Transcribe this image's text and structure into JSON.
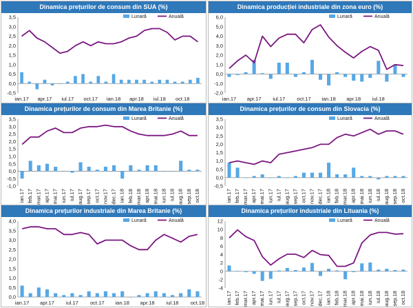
{
  "colors": {
    "title_bg": "#2f78b9",
    "bar": "#56a8e6",
    "line": "#7a1580",
    "axis": "#8a8a8a"
  },
  "legend": {
    "monthly": "Lunară",
    "annual": "Anuală"
  },
  "charts": [
    {
      "title": "Dinamica prețurilor de consum din SUA (%)",
      "chart_data": {
        "type": "bar+line",
        "title": "Dinamica prețurilor de consum din SUA (%)",
        "ylim": [
          -0.5,
          3.5
        ],
        "yticks": [
          "3,5",
          "3,0",
          "2,5",
          "2,0",
          "1,5",
          "1,0",
          "0,5",
          "0,0",
          "-0,5"
        ],
        "xtick_indices": [
          0,
          3,
          6,
          9,
          12,
          15,
          18,
          21
        ],
        "xtick_labels": [
          "ian.17",
          "apr.17",
          "iul.17",
          "oct.17",
          "ian.18",
          "apr.18",
          "iul.18",
          "oct.18"
        ],
        "xtick_rotate": false,
        "series": [
          {
            "name": "Lunară",
            "kind": "bar",
            "values": [
              0.6,
              0.1,
              -0.3,
              0.2,
              -0.1,
              0.0,
              0.1,
              0.4,
              0.5,
              0.1,
              0.4,
              0.1,
              0.5,
              0.2,
              0.2,
              0.2,
              0.2,
              0.1,
              0.2,
              0.2,
              0.1,
              0.1,
              0.2,
              0.3
            ]
          },
          {
            "name": "Anuală",
            "kind": "line",
            "values": [
              2.5,
              2.8,
              2.4,
              2.2,
              1.9,
              1.6,
              1.7,
              2.0,
              2.2,
              2.0,
              2.2,
              2.1,
              2.1,
              2.2,
              2.4,
              2.5,
              2.8,
              2.9,
              2.9,
              2.7,
              2.3,
              2.5,
              2.5,
              2.2
            ]
          }
        ]
      }
    },
    {
      "title": "Dinamica producției industriale din zona euro (%)",
      "chart_data": {
        "type": "bar+line",
        "title": "Dinamica producției industriale din zona euro (%)",
        "ylim": [
          -2.0,
          6.0
        ],
        "yticks": [
          "6,0",
          "5,0",
          "4,0",
          "3,0",
          "2,0",
          "1,0",
          "0,0",
          "-1,0",
          "-2,0"
        ],
        "xtick_indices": [
          0,
          3,
          6,
          9,
          12,
          15,
          18
        ],
        "xtick_labels": [
          "ian.17",
          "apr.17",
          "iul.17",
          "oct.17",
          "ian.18",
          "apr.18",
          "iul.18"
        ],
        "xtick_rotate": false,
        "series": [
          {
            "name": "Lunară",
            "kind": "bar",
            "values": [
              -0.3,
              -0.1,
              0.2,
              1.5,
              0.1,
              -0.5,
              1.2,
              1.2,
              -0.3,
              0.2,
              1.5,
              -0.6,
              -1.2,
              0.2,
              -0.3,
              -0.7,
              -0.8,
              -0.4,
              1.4,
              -0.8,
              1.0,
              -0.3
            ]
          },
          {
            "name": "Anuală",
            "kind": "line",
            "values": [
              0.6,
              1.4,
              2.0,
              1.2,
              4.0,
              2.9,
              3.8,
              4.2,
              4.2,
              3.3,
              4.7,
              5.2,
              3.9,
              3.0,
              2.3,
              1.7,
              2.4,
              2.9,
              2.5,
              0.5,
              1.0,
              0.9
            ]
          }
        ]
      }
    },
    {
      "title": "Dinamica prețurilor de consum din Marea Britanie (%)",
      "chart_data": {
        "type": "bar+line",
        "title": "Dinamica prețurilor de consum din Marea Britanie (%)",
        "ylim": [
          -1.0,
          3.5
        ],
        "yticks": [
          "3,5",
          "3,0",
          "2,5",
          "2,0",
          "1,5",
          "1,0",
          "0,5",
          "0,0",
          "-0,5",
          "-1,0"
        ],
        "xtick_indices": [
          0,
          1,
          2,
          3,
          4,
          5,
          6,
          7,
          8,
          9,
          10,
          11,
          12,
          13,
          14,
          15,
          16,
          17,
          18,
          19,
          20,
          21
        ],
        "xtick_labels": [
          "ian.17",
          "feb.17",
          "mar.17",
          "apr.17",
          "mai.17",
          "iun.17",
          "iul.17",
          "aug.17",
          "sep.17",
          "oct.17",
          "nov.17",
          "dec.17",
          "ian.18",
          "feb.18",
          "mar.18",
          "apr.18",
          "mai.18",
          "iun.18",
          "iul.18",
          "aug.18",
          "sep.18",
          "oct.18"
        ],
        "xtick_rotate": true,
        "series": [
          {
            "name": "Lunară",
            "kind": "bar",
            "values": [
              -0.5,
              0.7,
              0.4,
              0.5,
              0.3,
              0.0,
              -0.1,
              0.6,
              0.3,
              0.1,
              0.3,
              0.4,
              -0.5,
              0.4,
              0.1,
              0.4,
              0.4,
              0.0,
              0.0,
              0.7,
              0.1,
              0.1
            ]
          },
          {
            "name": "Anuală",
            "kind": "line",
            "values": [
              1.8,
              2.3,
              2.3,
              2.7,
              2.9,
              2.6,
              2.6,
              2.9,
              3.0,
              3.0,
              3.1,
              3.0,
              3.0,
              2.7,
              2.5,
              2.4,
              2.4,
              2.4,
              2.5,
              2.7,
              2.4,
              2.4
            ]
          }
        ]
      }
    },
    {
      "title": "Dinamica prețurilor de consum din Slovacia (%)",
      "chart_data": {
        "type": "bar+line",
        "title": "Dinamica prețurilor de consum din Slovacia (%)",
        "ylim": [
          -0.5,
          3.5
        ],
        "yticks": [
          "3,5",
          "3,0",
          "2,5",
          "2,0",
          "1,5",
          "1,0",
          "0,5",
          "0,0",
          "-0,5"
        ],
        "xtick_indices": [
          0,
          1,
          2,
          3,
          4,
          5,
          6,
          7,
          8,
          9,
          10,
          11,
          12,
          13,
          14,
          15,
          16,
          17,
          18,
          19,
          20,
          21
        ],
        "xtick_labels": [
          "ian.17",
          "feb.17",
          "mar.17",
          "apr.17",
          "mai.17",
          "iun.17",
          "iul.17",
          "aug.17",
          "sep.17",
          "oct.17",
          "nov.17",
          "dec.17",
          "ian.18",
          "feb.18",
          "mar.18",
          "apr.18",
          "mai.18",
          "iun.18",
          "iul.18",
          "aug.18",
          "sep.18",
          "oct.18"
        ],
        "xtick_rotate": true,
        "series": [
          {
            "name": "Lunară",
            "kind": "bar",
            "values": [
              0.9,
              0.6,
              0.0,
              0.1,
              0.2,
              0.0,
              0.1,
              0.0,
              0.1,
              0.3,
              0.3,
              0.3,
              0.9,
              0.2,
              0.2,
              0.6,
              0.1,
              0.1,
              -0.1,
              0.1,
              0.1,
              0.1
            ]
          },
          {
            "name": "Anuală",
            "kind": "line",
            "values": [
              0.9,
              1.0,
              0.9,
              0.8,
              1.0,
              0.9,
              1.4,
              1.5,
              1.6,
              1.7,
              1.8,
              2.0,
              2.0,
              2.4,
              2.6,
              2.5,
              2.7,
              2.9,
              2.6,
              2.8,
              2.8,
              2.6
            ]
          }
        ]
      }
    },
    {
      "title": "Dinamica prețurilor industriale din Marea Britanie (%)",
      "chart_data": {
        "type": "bar+line",
        "title": "Dinamica prețurilor industriale din Marea Britanie (%)",
        "ylim": [
          0.0,
          4.0
        ],
        "yticks": [
          "4,0",
          "3,5",
          "3,0",
          "2,5",
          "2,0",
          "1,5",
          "1,0",
          "0,5",
          "0,0"
        ],
        "xtick_indices": [
          0,
          3,
          6,
          9,
          12,
          15,
          18,
          21
        ],
        "xtick_labels": [
          "ian.17",
          "apr.17",
          "iul.17",
          "oct.17",
          "ian.18",
          "apr.18",
          "iul.18",
          "oct.18"
        ],
        "xtick_rotate": false,
        "series": [
          {
            "name": "Lunară",
            "kind": "bar",
            "values": [
              0.6,
              0.2,
              0.5,
              0.4,
              0.2,
              0.1,
              0.2,
              0.1,
              0.3,
              0.2,
              0.3,
              0.2,
              0.3,
              0.0,
              0.1,
              0.2,
              0.3,
              0.2,
              0.1,
              0.2,
              0.4,
              0.3
            ]
          },
          {
            "name": "Anuală",
            "kind": "line",
            "values": [
              3.6,
              3.7,
              3.7,
              3.6,
              3.6,
              3.3,
              3.3,
              3.4,
              3.3,
              2.8,
              3.0,
              3.0,
              3.0,
              2.7,
              2.5,
              2.5,
              3.0,
              3.3,
              3.1,
              2.9,
              3.2,
              3.3
            ]
          }
        ]
      }
    },
    {
      "title": "Dinamica prețurilor industriale din Lituania (%)",
      "chart_data": {
        "type": "bar+line",
        "title": "Dinamica prețurilor industriale din Lituania (%)",
        "ylim": [
          -4.0,
          12.0
        ],
        "yticks": [
          "12",
          "10",
          "8",
          "6",
          "4",
          "2",
          "0",
          "-2",
          "-4"
        ],
        "xtick_indices": [
          0,
          1,
          2,
          3,
          4,
          5,
          6,
          7,
          8,
          9,
          10,
          11,
          12,
          13,
          14,
          15,
          16,
          17,
          18,
          19,
          20,
          21
        ],
        "xtick_labels": [
          "ian.17",
          "feb.17",
          "mar.17",
          "apr.17",
          "mai.17",
          "iun.17",
          "iul.17",
          "aug.17",
          "sep.17",
          "oct.17",
          "nov.17",
          "dec.17",
          "ian.18",
          "feb.18",
          "mar.18",
          "apr.18",
          "mai.18",
          "iun.18",
          "iul.18",
          "aug.18",
          "sep.18",
          "oct.18"
        ],
        "xtick_rotate": true,
        "series": [
          {
            "name": "Lunară",
            "kind": "bar",
            "values": [
              1.4,
              0.1,
              -0.2,
              -0.6,
              -2.3,
              -1.8,
              0.2,
              0.8,
              0.3,
              0.9,
              2.0,
              -1.1,
              0.6,
              0.2,
              -1.9,
              -0.2,
              1.9,
              2.1,
              0.4,
              0.6,
              0.3,
              0.4
            ]
          },
          {
            "name": "Anuală",
            "kind": "line",
            "values": [
              8.0,
              9.9,
              8.3,
              7.4,
              3.5,
              1.5,
              3.0,
              4.1,
              4.1,
              3.3,
              5.0,
              4.0,
              3.8,
              1.2,
              1.2,
              2.0,
              6.8,
              8.7,
              9.3,
              9.3,
              8.9,
              9.0
            ]
          }
        ]
      }
    }
  ]
}
